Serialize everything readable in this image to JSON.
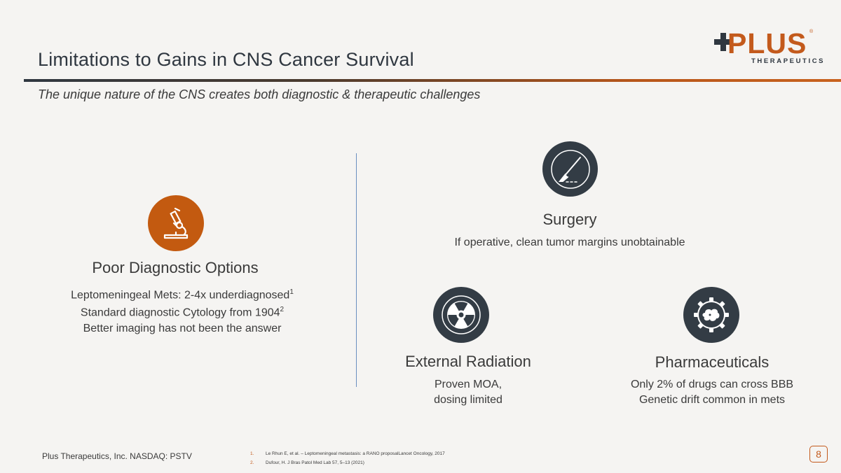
{
  "header": {
    "title": "Limitations to Gains in CNS Cancer Survival",
    "subtitle": "The unique nature of the CNS creates both diagnostic & therapeutic challenges"
  },
  "logo": {
    "wordmark": "PLUS",
    "tagline": "THERAPEUTICS",
    "registered": "®"
  },
  "diagnostic": {
    "icon": "microscope-icon",
    "heading": "Poor Diagnostic Options",
    "line1": "Leptomeningeal Mets:  2-4x underdiagnosed",
    "line1_sup": "1",
    "line2": "Standard diagnostic Cytology from 1904",
    "line2_sup": "2",
    "line3": "Better imaging has not been the answer"
  },
  "surgery": {
    "icon": "scalpel-icon",
    "heading": "Surgery",
    "line1": "If operative, clean tumor margins unobtainable"
  },
  "radiation": {
    "icon": "radiation-icon",
    "heading": "External Radiation",
    "line1": "Proven MOA,",
    "line2": "dosing limited"
  },
  "pharma": {
    "icon": "pill-gear-icon",
    "heading": "Pharmaceuticals",
    "line1": "Only 2% of drugs can cross BBB",
    "line2": "Genetic drift common in mets"
  },
  "footer": {
    "company": "Plus Therapeutics, Inc.  NASDAQ:  PSTV",
    "footnotes": [
      {
        "num": "1.",
        "text": "Le Rhun E, et al. – Leptomeningeal metastasis: a RANO proposalLancet Oncology, 2017"
      },
      {
        "num": "2.",
        "text": "Dufour, H. J Bras Patol Med Lab 57, 5–13 (2021)"
      }
    ],
    "page": "8"
  },
  "colors": {
    "accent": "#c35a1c",
    "dark": "#333c45",
    "background": "#f5f4f2",
    "divider": "#6a8fc0"
  }
}
